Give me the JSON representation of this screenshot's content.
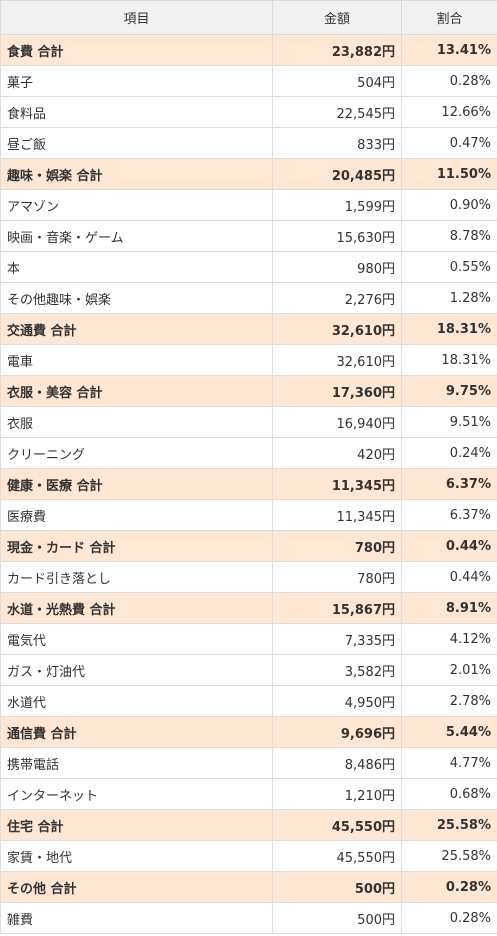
{
  "header": {
    "item": "項目",
    "amount": "金額",
    "ratio": "割合"
  },
  "rows": [
    {
      "type": "total",
      "label": "食費 合計",
      "amount": "23,882円",
      "ratio": "13.41%"
    },
    {
      "type": "item",
      "label": "菓子",
      "amount": "504円",
      "ratio": "0.28%"
    },
    {
      "type": "item",
      "label": "食料品",
      "amount": "22,545円",
      "ratio": "12.66%"
    },
    {
      "type": "item",
      "label": "昼ご飯",
      "amount": "833円",
      "ratio": "0.47%"
    },
    {
      "type": "total",
      "label": "趣味・娯楽 合計",
      "amount": "20,485円",
      "ratio": "11.50%"
    },
    {
      "type": "item",
      "label": "アマゾン",
      "amount": "1,599円",
      "ratio": "0.90%"
    },
    {
      "type": "item",
      "label": "映画・音楽・ゲーム",
      "amount": "15,630円",
      "ratio": "8.78%"
    },
    {
      "type": "item",
      "label": "本",
      "amount": "980円",
      "ratio": "0.55%"
    },
    {
      "type": "item",
      "label": "その他趣味・娯楽",
      "amount": "2,276円",
      "ratio": "1.28%"
    },
    {
      "type": "total",
      "label": "交通費 合計",
      "amount": "32,610円",
      "ratio": "18.31%"
    },
    {
      "type": "item",
      "label": "電車",
      "amount": "32,610円",
      "ratio": "18.31%"
    },
    {
      "type": "total",
      "label": "衣服・美容 合計",
      "amount": "17,360円",
      "ratio": "9.75%"
    },
    {
      "type": "item",
      "label": "衣服",
      "amount": "16,940円",
      "ratio": "9.51%"
    },
    {
      "type": "item",
      "label": "クリーニング",
      "amount": "420円",
      "ratio": "0.24%"
    },
    {
      "type": "total",
      "label": "健康・医療 合計",
      "amount": "11,345円",
      "ratio": "6.37%"
    },
    {
      "type": "item",
      "label": "医療費",
      "amount": "11,345円",
      "ratio": "6.37%"
    },
    {
      "type": "total",
      "label": "現金・カード 合計",
      "amount": "780円",
      "ratio": "0.44%"
    },
    {
      "type": "item",
      "label": "カード引き落とし",
      "amount": "780円",
      "ratio": "0.44%"
    },
    {
      "type": "total",
      "label": "水道・光熱費 合計",
      "amount": "15,867円",
      "ratio": "8.91%"
    },
    {
      "type": "item",
      "label": "電気代",
      "amount": "7,335円",
      "ratio": "4.12%"
    },
    {
      "type": "item",
      "label": "ガス・灯油代",
      "amount": "3,582円",
      "ratio": "2.01%"
    },
    {
      "type": "item",
      "label": "水道代",
      "amount": "4,950円",
      "ratio": "2.78%"
    },
    {
      "type": "total",
      "label": "通信費 合計",
      "amount": "9,696円",
      "ratio": "5.44%"
    },
    {
      "type": "item",
      "label": "携帯電話",
      "amount": "8,486円",
      "ratio": "4.77%"
    },
    {
      "type": "item",
      "label": "インターネット",
      "amount": "1,210円",
      "ratio": "0.68%"
    },
    {
      "type": "total",
      "label": "住宅 合計",
      "amount": "45,550円",
      "ratio": "25.58%"
    },
    {
      "type": "item",
      "label": "家賃・地代",
      "amount": "45,550円",
      "ratio": "25.58%"
    },
    {
      "type": "total",
      "label": "その他 合計",
      "amount": "500円",
      "ratio": "0.28%"
    },
    {
      "type": "item",
      "label": "雑費",
      "amount": "500円",
      "ratio": "0.28%"
    }
  ]
}
